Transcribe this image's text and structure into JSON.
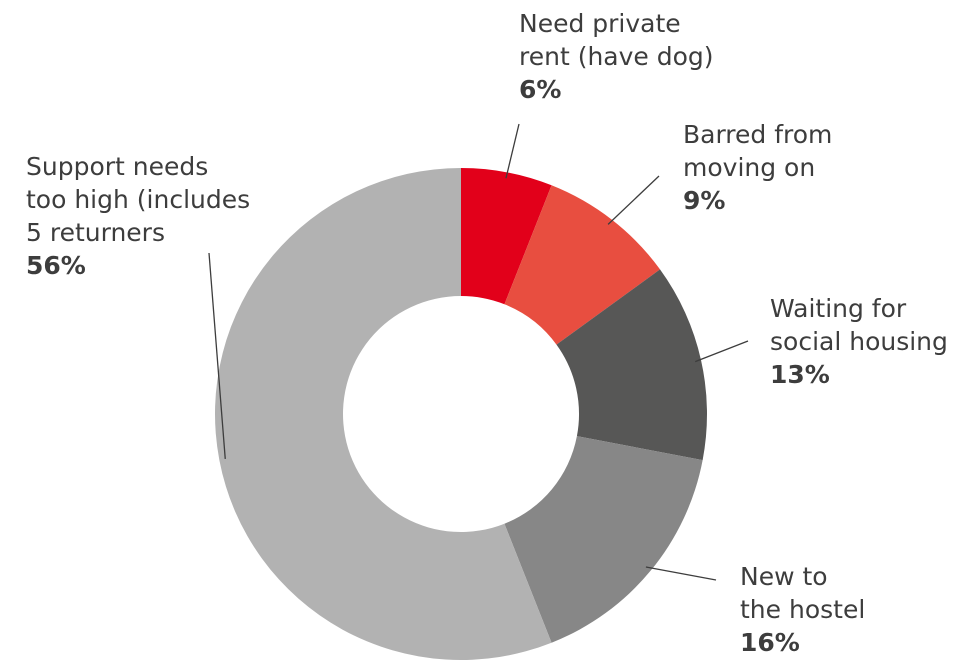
{
  "chart_data": {
    "type": "pie",
    "donut": true,
    "categories": [
      "Need private rent (have dog)",
      "Barred from moving on",
      "Waiting for social housing",
      "New to the hostel",
      "Support needs too high (includes 5 returners"
    ],
    "values": [
      6,
      9,
      13,
      16,
      56
    ],
    "unit": "%",
    "colors": [
      "#e2001a",
      "#e84e40",
      "#575756",
      "#878787",
      "#b2b2b2"
    ],
    "label_lines": [
      [
        "Need private",
        "rent (have dog)"
      ],
      [
        "Barred from",
        "moving on"
      ],
      [
        "Waiting for",
        "social housing"
      ],
      [
        "New to",
        "the hostel"
      ],
      [
        "Support needs",
        "too high (includes",
        "5 returners"
      ]
    ],
    "value_labels": [
      "6%",
      "9%",
      "13%",
      "16%",
      "56%"
    ],
    "legend": "none"
  }
}
